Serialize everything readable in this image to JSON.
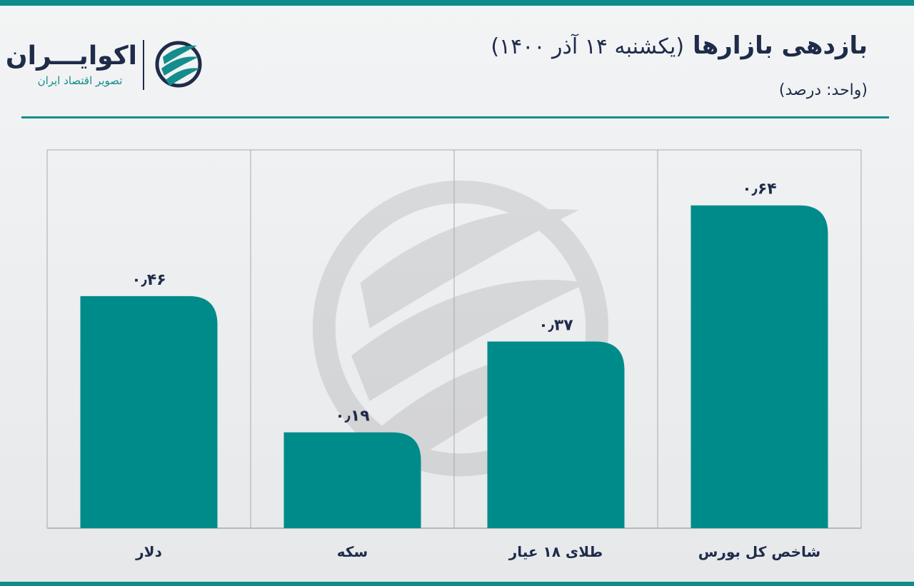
{
  "header": {
    "title_main": "بازدهی بازارها",
    "title_date": "(یکشنبه ۱۴ آذر ۱۴۰۰)",
    "unit": "(واحد: درصد)"
  },
  "logo": {
    "name": "اکوایـــران",
    "tagline": "تصویر اقتصاد ایران",
    "icon": "ecoiran-swirl-icon"
  },
  "colors": {
    "bar": "#008b8b",
    "accent": "#138e8c",
    "text": "#1f2b4a",
    "grid": "#a9a9a9"
  },
  "chart_data": {
    "type": "bar",
    "categories": [
      "شاخص کل بورس",
      "طلای ۱۸ عیار",
      "سکه",
      "دلار"
    ],
    "values": [
      0.64,
      0.37,
      0.19,
      0.46
    ],
    "value_labels": [
      "۰٫۶۴",
      "۰٫۳۷",
      "۰٫۱۹",
      "۰٫۴۶"
    ],
    "ylim": [
      0,
      0.75
    ],
    "xlabel": "",
    "ylabel": "",
    "grid": true,
    "legend": "none"
  }
}
